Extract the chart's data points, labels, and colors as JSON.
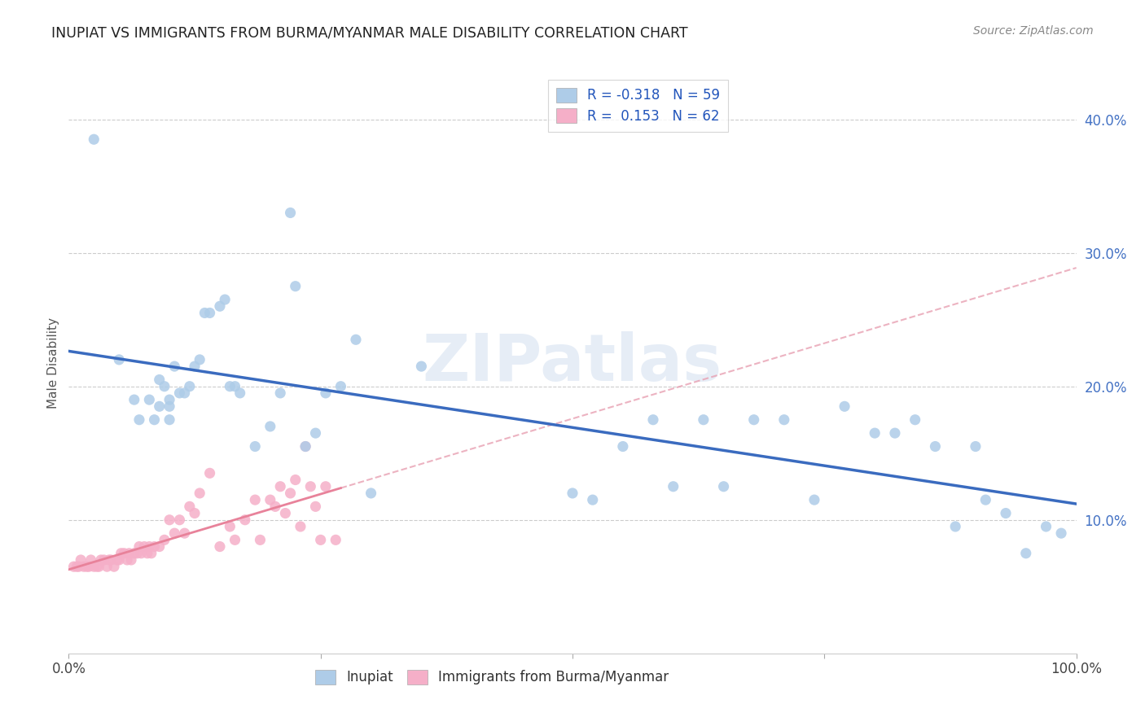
{
  "title": "INUPIAT VS IMMIGRANTS FROM BURMA/MYANMAR MALE DISABILITY CORRELATION CHART",
  "source": "Source: ZipAtlas.com",
  "ylabel": "Male Disability",
  "ytick_vals": [
    0.1,
    0.2,
    0.3,
    0.4
  ],
  "ytick_labels": [
    "10.0%",
    "20.0%",
    "30.0%",
    "40.0%"
  ],
  "xtick_vals": [
    0.0,
    0.25,
    0.5,
    0.75,
    1.0
  ],
  "xtick_labels": [
    "0.0%",
    "",
    "",
    "",
    "100.0%"
  ],
  "legend_r_labels": [
    "R = -0.318   N = 59",
    "R =  0.153   N = 62"
  ],
  "legend_group_labels": [
    "Inupiat",
    "Immigrants from Burma/Myanmar"
  ],
  "inupiat_color": "#aecce8",
  "burma_color": "#f5afc8",
  "inupiat_line_color": "#3a6bbf",
  "burma_line_color": "#e8829a",
  "burma_dash_color": "#e8a0b2",
  "xlim": [
    0.0,
    1.0
  ],
  "ylim": [
    0.0,
    0.435
  ],
  "watermark": "ZIPatlas",
  "background_color": "#ffffff",
  "inupiat_x": [
    0.025,
    0.05,
    0.065,
    0.07,
    0.08,
    0.085,
    0.09,
    0.09,
    0.095,
    0.1,
    0.1,
    0.1,
    0.105,
    0.11,
    0.115,
    0.12,
    0.125,
    0.13,
    0.135,
    0.14,
    0.15,
    0.155,
    0.16,
    0.165,
    0.17,
    0.185,
    0.2,
    0.21,
    0.22,
    0.225,
    0.235,
    0.245,
    0.255,
    0.27,
    0.285,
    0.3,
    0.35,
    0.5,
    0.52,
    0.55,
    0.58,
    0.6,
    0.63,
    0.65,
    0.68,
    0.71,
    0.74,
    0.77,
    0.8,
    0.82,
    0.84,
    0.86,
    0.88,
    0.9,
    0.91,
    0.93,
    0.95,
    0.97,
    0.985
  ],
  "inupiat_y": [
    0.385,
    0.22,
    0.19,
    0.175,
    0.19,
    0.175,
    0.205,
    0.185,
    0.2,
    0.19,
    0.185,
    0.175,
    0.215,
    0.195,
    0.195,
    0.2,
    0.215,
    0.22,
    0.255,
    0.255,
    0.26,
    0.265,
    0.2,
    0.2,
    0.195,
    0.155,
    0.17,
    0.195,
    0.33,
    0.275,
    0.155,
    0.165,
    0.195,
    0.2,
    0.235,
    0.12,
    0.215,
    0.12,
    0.115,
    0.155,
    0.175,
    0.125,
    0.175,
    0.125,
    0.175,
    0.175,
    0.115,
    0.185,
    0.165,
    0.165,
    0.175,
    0.155,
    0.095,
    0.155,
    0.115,
    0.105,
    0.075,
    0.095,
    0.09
  ],
  "burma_x": [
    0.005,
    0.008,
    0.01,
    0.012,
    0.015,
    0.018,
    0.02,
    0.022,
    0.025,
    0.028,
    0.03,
    0.032,
    0.035,
    0.038,
    0.04,
    0.042,
    0.045,
    0.048,
    0.05,
    0.052,
    0.055,
    0.058,
    0.06,
    0.062,
    0.065,
    0.068,
    0.07,
    0.072,
    0.075,
    0.078,
    0.08,
    0.082,
    0.085,
    0.09,
    0.095,
    0.1,
    0.105,
    0.11,
    0.115,
    0.12,
    0.125,
    0.13,
    0.14,
    0.15,
    0.16,
    0.165,
    0.175,
    0.185,
    0.19,
    0.2,
    0.205,
    0.21,
    0.215,
    0.22,
    0.225,
    0.23,
    0.235,
    0.24,
    0.245,
    0.25,
    0.255,
    0.265
  ],
  "burma_y": [
    0.065,
    0.065,
    0.065,
    0.07,
    0.065,
    0.065,
    0.065,
    0.07,
    0.065,
    0.065,
    0.065,
    0.07,
    0.07,
    0.065,
    0.07,
    0.07,
    0.065,
    0.07,
    0.07,
    0.075,
    0.075,
    0.07,
    0.075,
    0.07,
    0.075,
    0.075,
    0.08,
    0.075,
    0.08,
    0.075,
    0.08,
    0.075,
    0.08,
    0.08,
    0.085,
    0.1,
    0.09,
    0.1,
    0.09,
    0.11,
    0.105,
    0.12,
    0.135,
    0.08,
    0.095,
    0.085,
    0.1,
    0.115,
    0.085,
    0.115,
    0.11,
    0.125,
    0.105,
    0.12,
    0.13,
    0.095,
    0.155,
    0.125,
    0.11,
    0.085,
    0.125,
    0.085
  ]
}
